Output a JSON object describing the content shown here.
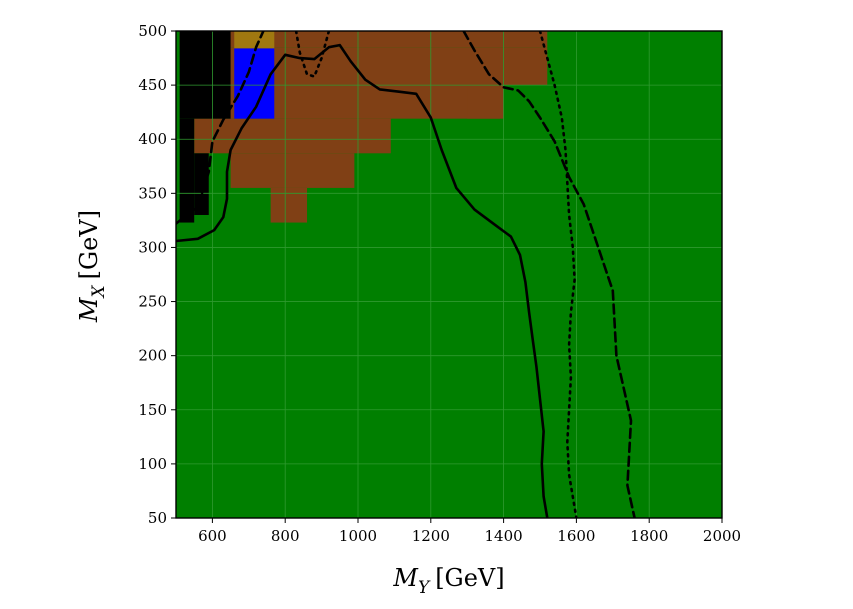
{
  "chart_data": {
    "type": "heatmap",
    "title": "",
    "xlabel_main": "M",
    "xlabel_sub": "Y",
    "xlabel_unit": "[GeV]",
    "ylabel_main": "M",
    "ylabel_sub": "X",
    "ylabel_unit": "[GeV]",
    "xlim": [
      500,
      2000
    ],
    "ylim": [
      50,
      500
    ],
    "x_ticks": [
      "600",
      "800",
      "1000",
      "1200",
      "1400",
      "1600",
      "1800",
      "2000"
    ],
    "y_ticks": [
      "50",
      "100",
      "150",
      "200",
      "250",
      "300",
      "350",
      "400",
      "450",
      "500"
    ],
    "grid": true,
    "colors": {
      "green": "#007f00",
      "brown": "#804015",
      "blue": "#0000ff",
      "black": "#000000",
      "gold": "#a07810",
      "grid": "#2f9a2f"
    },
    "background_color": "green",
    "regions": [
      {
        "color": "brown",
        "x": [
          510,
          1520
        ],
        "y": [
          485,
          500
        ]
      },
      {
        "color": "brown",
        "x": [
          550,
          1520
        ],
        "y": [
          450,
          485
        ]
      },
      {
        "color": "brown",
        "x": [
          550,
          1390
        ],
        "y": [
          419,
          450
        ]
      },
      {
        "color": "brown",
        "x": [
          1300,
          1400
        ],
        "y": [
          419,
          450
        ]
      },
      {
        "color": "brown",
        "x": [
          550,
          1090
        ],
        "y": [
          387,
          419
        ]
      },
      {
        "color": "brown",
        "x": [
          650,
          990
        ],
        "y": [
          355,
          387
        ]
      },
      {
        "color": "brown",
        "x": [
          760,
          860
        ],
        "y": [
          323,
          355
        ]
      },
      {
        "color": "black",
        "x": [
          510,
          650
        ],
        "y": [
          419,
          500
        ]
      },
      {
        "color": "black",
        "x": [
          510,
          550
        ],
        "y": [
          323,
          419
        ]
      },
      {
        "color": "black",
        "x": [
          550,
          590
        ],
        "y": [
          330,
          387
        ]
      },
      {
        "color": "blue",
        "x": [
          660,
          770
        ],
        "y": [
          419,
          484
        ]
      },
      {
        "color": "gold",
        "x": [
          660,
          770
        ],
        "y": [
          484,
          500
        ]
      }
    ],
    "contours": [
      {
        "style": "solid",
        "points": [
          [
            500,
            306
          ],
          [
            560,
            308
          ],
          [
            605,
            316
          ],
          [
            630,
            328
          ],
          [
            640,
            345
          ],
          [
            640,
            370
          ],
          [
            650,
            390
          ],
          [
            680,
            410
          ],
          [
            720,
            430
          ],
          [
            760,
            460
          ],
          [
            800,
            478
          ],
          [
            840,
            475
          ],
          [
            880,
            474
          ],
          [
            920,
            485
          ],
          [
            950,
            487
          ],
          [
            980,
            472
          ],
          [
            1020,
            455
          ],
          [
            1060,
            446
          ],
          [
            1110,
            444
          ],
          [
            1160,
            442
          ],
          [
            1200,
            420
          ],
          [
            1230,
            390
          ],
          [
            1270,
            355
          ],
          [
            1320,
            335
          ],
          [
            1380,
            320
          ],
          [
            1420,
            310
          ],
          [
            1445,
            293
          ],
          [
            1460,
            268
          ],
          [
            1470,
            240
          ],
          [
            1480,
            215
          ],
          [
            1490,
            190
          ],
          [
            1500,
            160
          ],
          [
            1510,
            130
          ],
          [
            1505,
            100
          ],
          [
            1510,
            70
          ],
          [
            1520,
            50
          ]
        ]
      },
      {
        "style": "dashed",
        "points": [
          [
            500,
            322
          ],
          [
            560,
            338
          ],
          [
            590,
            370
          ],
          [
            600,
            398
          ],
          [
            630,
            418
          ],
          [
            670,
            440
          ],
          [
            700,
            462
          ],
          [
            720,
            485
          ],
          [
            740,
            500
          ]
        ]
      },
      {
        "style": "dashed",
        "points": [
          [
            1290,
            500
          ],
          [
            1320,
            482
          ],
          [
            1360,
            460
          ],
          [
            1400,
            448
          ],
          [
            1440,
            445
          ],
          [
            1470,
            435
          ],
          [
            1500,
            420
          ],
          [
            1540,
            398
          ],
          [
            1580,
            365
          ],
          [
            1620,
            340
          ],
          [
            1650,
            310
          ],
          [
            1680,
            280
          ],
          [
            1700,
            260
          ],
          [
            1705,
            230
          ],
          [
            1710,
            200
          ],
          [
            1730,
            170
          ],
          [
            1750,
            140
          ],
          [
            1745,
            110
          ],
          [
            1740,
            80
          ],
          [
            1760,
            50
          ]
        ]
      },
      {
        "style": "dotted",
        "points": [
          [
            830,
            500
          ],
          [
            840,
            480
          ],
          [
            860,
            460
          ],
          [
            880,
            458
          ],
          [
            900,
            475
          ],
          [
            920,
            500
          ]
        ]
      },
      {
        "style": "dotted",
        "points": [
          [
            1500,
            500
          ],
          [
            1520,
            475
          ],
          [
            1540,
            450
          ],
          [
            1560,
            420
          ],
          [
            1570,
            390
          ],
          [
            1575,
            360
          ],
          [
            1580,
            330
          ],
          [
            1590,
            300
          ],
          [
            1595,
            270
          ],
          [
            1585,
            240
          ],
          [
            1580,
            210
          ],
          [
            1585,
            180
          ],
          [
            1580,
            150
          ],
          [
            1575,
            120
          ],
          [
            1580,
            90
          ],
          [
            1600,
            50
          ]
        ]
      }
    ]
  }
}
